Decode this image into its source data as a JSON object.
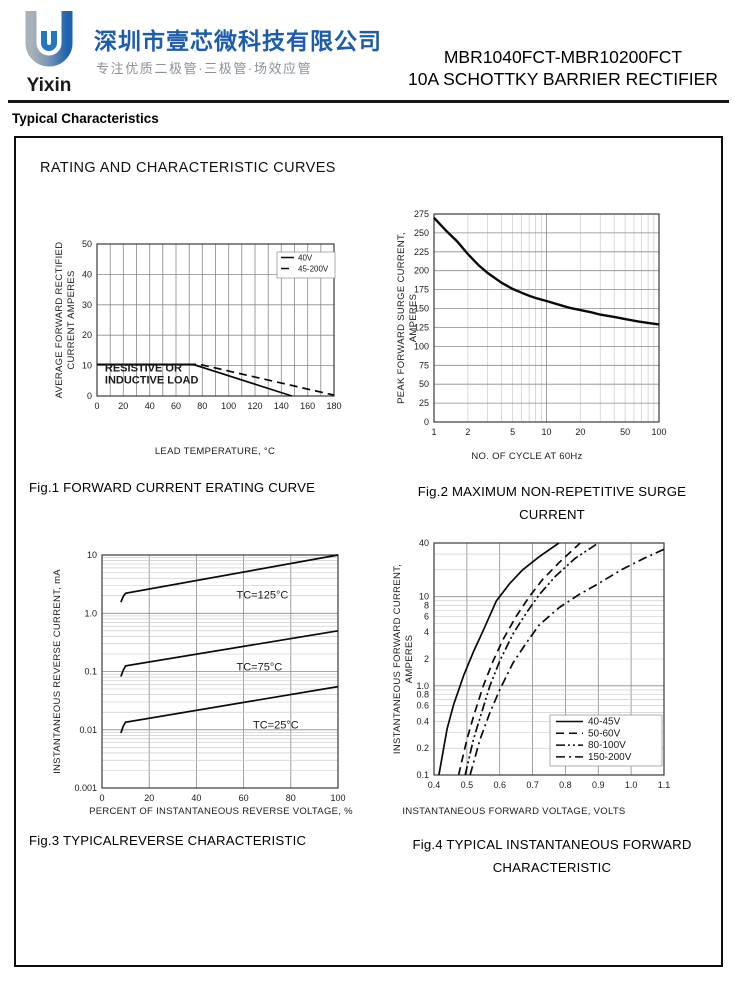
{
  "header": {
    "logo_text": "Yixin",
    "company_cn": "深圳市壹芯微科技有限公司",
    "tagline_cn": "专注优质二极管·三极管·场效应管",
    "part_range": "MBR1040FCT-MBR10200FCT",
    "subtitle": "10A SCHOTTKY BARRIER RECTIFIER",
    "brand_blue": "#1d5cab",
    "logo_gray": "#a9b2b8",
    "tagline_gray": "#8a9096"
  },
  "section": {
    "heading": "Typical Characteristics",
    "panel_title": "RATING AND CHARACTERISTIC CURVES"
  },
  "chart_data": [
    {
      "figure": "Fig.1",
      "type": "line",
      "caption": "Fig.1 FORWARD CURRENT ERATING CURVE",
      "xlabel": "LEAD TEMPERATURE, °C",
      "ylabel_lines": [
        "AVERAGE FORWARD RECTIFIED",
        "CURRENT AMPERES"
      ],
      "x": {
        "scale": "linear",
        "min": 0,
        "max": 180,
        "grid_step": 10,
        "ticks": [
          [
            0,
            "0"
          ],
          [
            20,
            "20"
          ],
          [
            40,
            "40"
          ],
          [
            60,
            "60"
          ],
          [
            80,
            "80"
          ],
          [
            100,
            "100"
          ],
          [
            120,
            "120"
          ],
          [
            140,
            "140"
          ],
          [
            160,
            "160"
          ],
          [
            180,
            "180"
          ]
        ]
      },
      "y": {
        "scale": "linear",
        "min": 0,
        "max": 50,
        "grid_step": 10,
        "ticks": [
          [
            0,
            "0"
          ],
          [
            10,
            "10"
          ],
          [
            20,
            "20"
          ],
          [
            30,
            "30"
          ],
          [
            40,
            "40"
          ],
          [
            50,
            "50"
          ]
        ]
      },
      "series": [
        {
          "name": "40V",
          "line_style": "solid",
          "points": [
            [
              0,
              10.4
            ],
            [
              73,
              10.4
            ],
            [
              148,
              0
            ]
          ]
        },
        {
          "name": "45-200V",
          "line_style": "dashed",
          "points": [
            [
              0,
              10.4
            ],
            [
              78,
              10.4
            ],
            [
              180,
              0.3
            ]
          ]
        }
      ],
      "annotations": [
        {
          "x": 6,
          "y": 8.0,
          "lines": [
            "RESISTIVE OR",
            "INDUCTIVE LOAD"
          ],
          "size": 11,
          "weight": 600
        }
      ],
      "legend_position": "top-right"
    },
    {
      "figure": "Fig.2",
      "type": "line",
      "caption_lines": [
        "Fig.2 MAXIMUM NON-REPETITIVE SURGE",
        "CURRENT"
      ],
      "xlabel": "NO. OF  CYCLE AT 60Hz",
      "ylabel_lines": [
        "PEAK  FORWARD  SURGE  CURRENT,",
        "AMPERES"
      ],
      "x": {
        "scale": "log",
        "min": 1,
        "max": 100,
        "ticks": [
          [
            1,
            "1"
          ],
          [
            2,
            "2"
          ],
          [
            5,
            "5"
          ],
          [
            10,
            "10"
          ],
          [
            20,
            "20"
          ],
          [
            50,
            "50"
          ],
          [
            100,
            "100"
          ]
        ]
      },
      "y": {
        "scale": "linear",
        "min": 0,
        "max": 275,
        "grid_step": 25,
        "ticks": [
          [
            0,
            "0"
          ],
          [
            25,
            "25"
          ],
          [
            50,
            "50"
          ],
          [
            75,
            "75"
          ],
          [
            100,
            "100"
          ],
          [
            125,
            "125"
          ],
          [
            150,
            "150"
          ],
          [
            175,
            "175"
          ],
          [
            200,
            "200"
          ],
          [
            225,
            "225"
          ],
          [
            250,
            "250"
          ],
          [
            275,
            "275"
          ]
        ]
      },
      "series": [
        {
          "name": "surge-current",
          "line_style": "solid",
          "points": [
            [
              1,
              270
            ],
            [
              1.3,
              252
            ],
            [
              1.6,
              239
            ],
            [
              2,
              222
            ],
            [
              2.5,
              207
            ],
            [
              3,
              197
            ],
            [
              4,
              184
            ],
            [
              5,
              176
            ],
            [
              6,
              171
            ],
            [
              7,
              167
            ],
            [
              8,
              164
            ],
            [
              10,
              160
            ],
            [
              13,
              155
            ],
            [
              16,
              151
            ],
            [
              20,
              148
            ],
            [
              25,
              145
            ],
            [
              30,
              142
            ],
            [
              40,
              139
            ],
            [
              50,
              136
            ],
            [
              65,
              133
            ],
            [
              80,
              131
            ],
            [
              100,
              129
            ]
          ]
        }
      ],
      "annotations": []
    },
    {
      "figure": "Fig.3",
      "type": "line",
      "caption": "Fig.3 TYPICALREVERSE  CHARACTERISTIC",
      "xlabel": "PERCENT OF INSTANTANEOUS REVERSE VOLTAGE, %",
      "ylabel_lines": [
        "INSTANTANEOUS REVERSE CURRENT, mA"
      ],
      "x": {
        "scale": "linear",
        "min": 0,
        "max": 100,
        "grid_step": 20,
        "ticks": [
          [
            0,
            "0"
          ],
          [
            20,
            "20"
          ],
          [
            40,
            "40"
          ],
          [
            60,
            "60"
          ],
          [
            80,
            "80"
          ],
          [
            100,
            "100"
          ]
        ]
      },
      "y": {
        "scale": "log",
        "min": 0.001,
        "max": 10,
        "ticks": [
          [
            10,
            "10"
          ],
          [
            1,
            "1.0"
          ],
          [
            0.1,
            "0.1"
          ],
          [
            0.01,
            "0.01"
          ],
          [
            0.001,
            "0.001"
          ]
        ]
      },
      "series": [
        {
          "name": "TC=125°C",
          "line_style": "solid",
          "points": [
            [
              8,
              1.55
            ],
            [
              9,
              1.95
            ],
            [
              10,
              2.2
            ],
            [
              100,
              10
            ]
          ]
        },
        {
          "name": "TC=75°C",
          "line_style": "solid",
          "points": [
            [
              8,
              0.082
            ],
            [
              9,
              0.105
            ],
            [
              10,
              0.125
            ],
            [
              100,
              0.5
            ]
          ]
        },
        {
          "name": "TC=25°C",
          "line_style": "solid",
          "points": [
            [
              8,
              0.0088
            ],
            [
              9,
              0.0115
            ],
            [
              10,
              0.0135
            ],
            [
              100,
              0.055
            ]
          ]
        }
      ],
      "annotations": [
        {
          "x": 57,
          "y": 1.8,
          "lines": [
            "TC=125°C"
          ],
          "size": 11
        },
        {
          "x": 57,
          "y": 0.105,
          "lines": [
            "TC=75°C"
          ],
          "size": 11
        },
        {
          "x": 64,
          "y": 0.0105,
          "lines": [
            "TC=25°C"
          ],
          "size": 11
        }
      ]
    },
    {
      "figure": "Fig.4",
      "type": "line",
      "caption_lines": [
        "Fig.4 TYPICAL INSTANTANEOUS FORWARD",
        "CHARACTERISTIC"
      ],
      "xlabel": "INSTANTANEOUS FORWARD VOLTAGE, VOLTS",
      "ylabel_lines": [
        "INSTANTANEOUS FORWARD CURRENT,",
        "AMPERES"
      ],
      "x": {
        "scale": "linear",
        "min": 0.4,
        "max": 1.1,
        "grid_step": 0.1,
        "ticks": [
          [
            0.4,
            "0.4"
          ],
          [
            0.5,
            "0.5"
          ],
          [
            0.6,
            "0.6"
          ],
          [
            0.7,
            "0.7"
          ],
          [
            0.8,
            "0.8"
          ],
          [
            0.9,
            "0.9"
          ],
          [
            1.0,
            "1.0"
          ],
          [
            1.1,
            "1.1"
          ]
        ]
      },
      "y": {
        "scale": "log",
        "min": 0.1,
        "max": 40,
        "ticks": [
          [
            40,
            "40"
          ],
          [
            10,
            "10"
          ],
          [
            8,
            "8"
          ],
          [
            6,
            "6"
          ],
          [
            4,
            "4"
          ],
          [
            2,
            "2"
          ],
          [
            1,
            "1.0"
          ],
          [
            0.8,
            "0.8"
          ],
          [
            0.6,
            "0.6"
          ],
          [
            0.4,
            "0.4"
          ],
          [
            0.2,
            "0.2"
          ],
          [
            0.1,
            "0.1"
          ]
        ]
      },
      "series": [
        {
          "name": "40-45V",
          "line_style": "solid",
          "points": [
            [
              0.415,
              0.1
            ],
            [
              0.44,
              0.33
            ],
            [
              0.46,
              0.62
            ],
            [
              0.49,
              1.3
            ],
            [
              0.52,
              2.4
            ],
            [
              0.55,
              4.2
            ],
            [
              0.59,
              9
            ],
            [
              0.63,
              14
            ],
            [
              0.67,
              20
            ],
            [
              0.72,
              28
            ],
            [
              0.78,
              40
            ]
          ]
        },
        {
          "name": "50-60V",
          "line_style": "dashed",
          "points": [
            [
              0.475,
              0.1
            ],
            [
              0.5,
              0.25
            ],
            [
              0.52,
              0.45
            ],
            [
              0.55,
              1.0
            ],
            [
              0.58,
              1.9
            ],
            [
              0.61,
              3.3
            ],
            [
              0.65,
              6
            ],
            [
              0.69,
              10
            ],
            [
              0.73,
              15.5
            ],
            [
              0.78,
              24
            ],
            [
              0.845,
              40
            ]
          ]
        },
        {
          "name": "80-100V",
          "line_style": "dash-dot-dot",
          "points": [
            [
              0.495,
              0.1
            ],
            [
              0.52,
              0.25
            ],
            [
              0.545,
              0.5
            ],
            [
              0.57,
              1.0
            ],
            [
              0.6,
              1.9
            ],
            [
              0.64,
              3.8
            ],
            [
              0.68,
              6.5
            ],
            [
              0.72,
              10.5
            ],
            [
              0.77,
              17
            ],
            [
              0.83,
              27
            ],
            [
              0.9,
              40
            ]
          ]
        },
        {
          "name": "150-200V",
          "line_style": "dash-dot",
          "points": [
            [
              0.51,
              0.1
            ],
            [
              0.54,
              0.25
            ],
            [
              0.57,
              0.5
            ],
            [
              0.6,
              0.9
            ],
            [
              0.64,
              1.8
            ],
            [
              0.68,
              3.0
            ],
            [
              0.72,
              4.8
            ],
            [
              0.78,
              7.5
            ],
            [
              0.84,
              10.5
            ],
            [
              0.9,
              14
            ],
            [
              0.97,
              20
            ],
            [
              1.04,
              27
            ],
            [
              1.1,
              34
            ]
          ]
        }
      ],
      "annotations": [],
      "legend_position": "bottom-right"
    }
  ]
}
